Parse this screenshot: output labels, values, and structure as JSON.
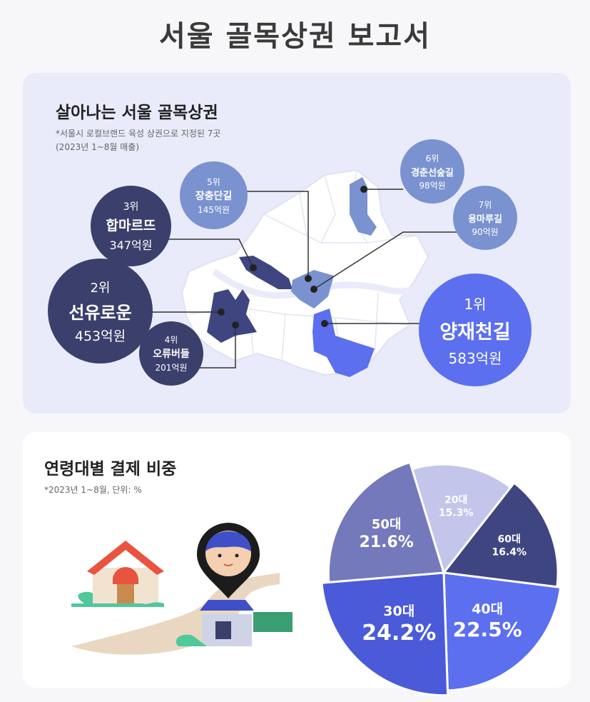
{
  "page_title": "서울 골목상권 보고서",
  "map_section": {
    "title": "살아나는 서울 골목상권",
    "note_line1": "*서울시 로컬브랜드 육성 상권으로 지정된 7곳",
    "note_line2": "(2023년 1~8월 매출)",
    "ranks": [
      {
        "rank": "1위",
        "name": "양재천길",
        "sales": "583억원",
        "value": 583
      },
      {
        "rank": "2위",
        "name": "선유로운",
        "sales": "453억원",
        "value": 453
      },
      {
        "rank": "3위",
        "name": "합마르뜨",
        "sales": "347억원",
        "value": 347
      },
      {
        "rank": "4위",
        "name": "오류버들",
        "sales": "201억원",
        "value": 201
      },
      {
        "rank": "5위",
        "name": "장충단길",
        "sales": "145억원",
        "value": 145
      },
      {
        "rank": "6위",
        "name": "경춘선숲길",
        "sales": "98억원",
        "value": 98
      },
      {
        "rank": "7위",
        "name": "용마루길",
        "sales": "90억원",
        "value": 90
      }
    ]
  },
  "pie_section": {
    "title": "연령대별 결제 비중",
    "note": "*2023년 1~8월, 단위: %"
  },
  "chart_data": {
    "type": "pie",
    "unit": "%",
    "slices": [
      {
        "label": "20대",
        "value": 15.3,
        "value_label": "15.3%",
        "color": "#c3c6ea"
      },
      {
        "label": "60대",
        "value": 16.4,
        "value_label": "16.4%",
        "color": "#3f4580"
      },
      {
        "label": "40대",
        "value": 22.5,
        "value_label": "22.5%",
        "color": "#5b6fef"
      },
      {
        "label": "30대",
        "value": 24.2,
        "value_label": "24.2%",
        "color": "#4a5ad8"
      },
      {
        "label": "50대",
        "value": 21.6,
        "value_label": "21.6%",
        "color": "#7479bb"
      }
    ]
  }
}
